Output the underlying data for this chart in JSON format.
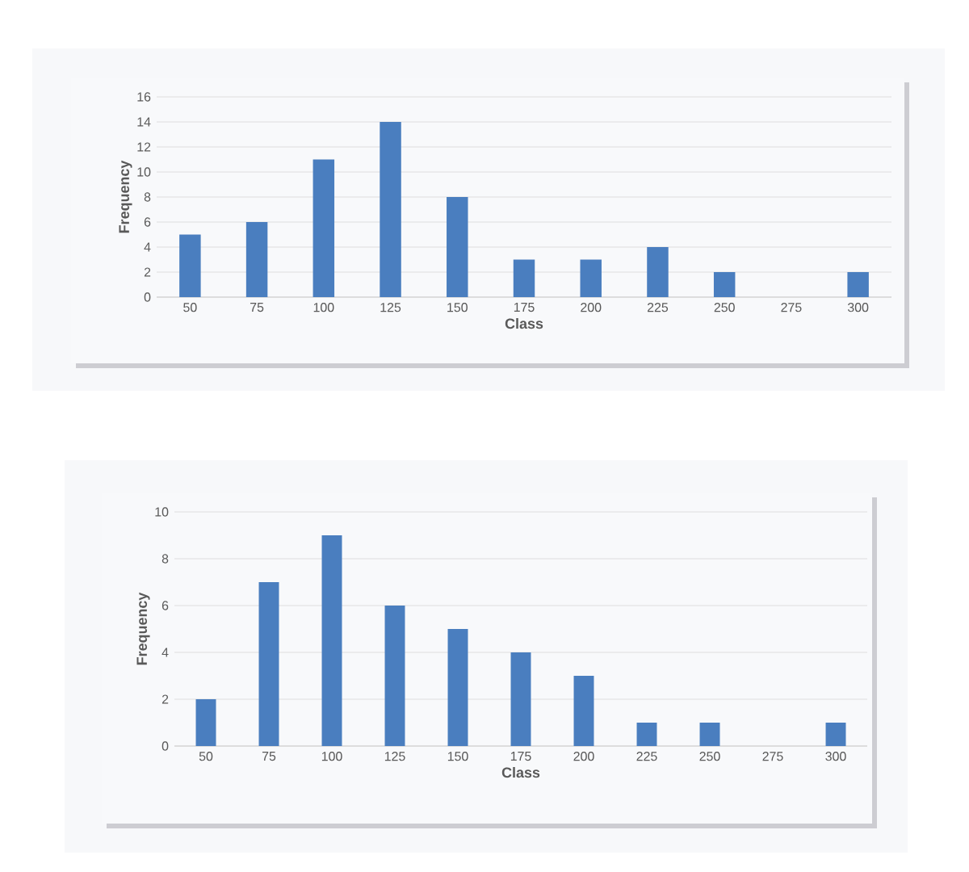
{
  "chart_data": [
    {
      "type": "bar",
      "xlabel": "Class",
      "ylabel": "Frequency",
      "categories": [
        "50",
        "75",
        "100",
        "125",
        "150",
        "175",
        "200",
        "225",
        "250",
        "275",
        "300"
      ],
      "values": [
        5,
        6,
        11,
        14,
        8,
        3,
        3,
        4,
        2,
        0,
        2
      ],
      "color": "#4a7ebf",
      "ylim": [
        0,
        16
      ],
      "yticks": [
        0,
        2,
        4,
        6,
        8,
        10,
        12,
        14,
        16
      ],
      "grid": "y"
    },
    {
      "type": "bar",
      "xlabel": "Class",
      "ylabel": "Frequency",
      "categories": [
        "50",
        "75",
        "100",
        "125",
        "150",
        "175",
        "200",
        "225",
        "250",
        "275",
        "300"
      ],
      "values": [
        2,
        7,
        9,
        6,
        5,
        4,
        3,
        1,
        1,
        0,
        1
      ],
      "color": "#4a7ebf",
      "ylim": [
        0,
        10
      ],
      "yticks": [
        0,
        2,
        4,
        6,
        8,
        10
      ],
      "grid": "y"
    }
  ]
}
